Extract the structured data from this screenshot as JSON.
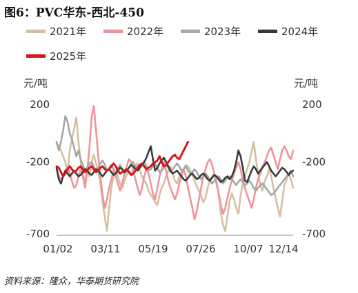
{
  "figure": {
    "title": "图6：PVC华东-西北-450",
    "source": "资料来源：隆众，华泰期货研究院"
  },
  "chart_data": {
    "type": "line",
    "title": "图6：PVC华东-西北-450",
    "xlabel": "",
    "ylabel": "元/吨",
    "ylabel_right": "元/吨",
    "x_ticks": [
      "01/02",
      "03/11",
      "05/19",
      "07/26",
      "10/07",
      "12/14"
    ],
    "y_ticks": [
      200,
      -200,
      -700
    ],
    "ylim": [
      -700,
      350
    ],
    "grid": false,
    "legend_position": "top",
    "series": [
      {
        "name": "2021年",
        "color": "#d4c09e",
        "values": [
          -70,
          -90,
          -120,
          -160,
          -200,
          -280,
          -120,
          -40,
          30,
          110,
          -60,
          -200,
          -280,
          -340,
          -260,
          -300,
          -200,
          -150,
          -210,
          -260,
          -350,
          -480,
          -580,
          -680,
          -520,
          -380,
          -300,
          -260,
          -300,
          -350,
          -380,
          -330,
          -290,
          -260,
          -280,
          -250,
          -230,
          -210,
          -260,
          -300,
          -330,
          -350,
          -400,
          -430,
          -450,
          -480,
          -500,
          -430,
          -380,
          -350,
          -300,
          -260,
          -230,
          -280,
          -330,
          -350,
          -300,
          -270,
          -250,
          -220,
          -230,
          -260,
          -290,
          -330,
          -370,
          -400,
          -440,
          -480,
          -450,
          -380,
          -320,
          -300,
          -280,
          -330,
          -420,
          -560,
          -640,
          -680,
          -580,
          -470,
          -420,
          -460,
          -520,
          -560,
          -430,
          -350,
          -300,
          -250,
          -200,
          -130,
          -60,
          -180,
          -280,
          -360,
          -400,
          -330,
          -300,
          -250,
          -300,
          -380,
          -450,
          -520,
          -580,
          -470,
          -360,
          -320,
          -280,
          -320,
          -380
        ]
      },
      {
        "name": "2022年",
        "color": "#f0939c",
        "values": [
          -250,
          -300,
          -320,
          -300,
          -260,
          -230,
          -280,
          -330,
          -380,
          -360,
          -300,
          -250,
          -300,
          -380,
          -260,
          -100,
          110,
          190,
          20,
          -150,
          -300,
          -430,
          -520,
          -460,
          -380,
          -320,
          -260,
          -300,
          -350,
          -400,
          -350,
          -280,
          -230,
          -180,
          -200,
          -260,
          -320,
          -380,
          -430,
          -380,
          -300,
          -250,
          -280,
          -350,
          -420,
          -460,
          -380,
          -300,
          -250,
          -200,
          -260,
          -330,
          -380,
          -420,
          -460,
          -420,
          -350,
          -300,
          -250,
          -300,
          -380,
          -450,
          -520,
          -600,
          -540,
          -460,
          -380,
          -300,
          -250,
          -200,
          -180,
          -220,
          -280,
          -350,
          -420,
          -500,
          -560,
          -520,
          -450,
          -380,
          -330,
          -280,
          -240,
          -200,
          -250,
          -320,
          -380,
          -430,
          -470,
          -520,
          -460,
          -380,
          -320,
          -280,
          -230,
          -200,
          -160,
          -120,
          -100,
          -150,
          -200,
          -250,
          -180,
          -120,
          -90,
          -120,
          -160,
          -180,
          -120
        ]
      },
      {
        "name": "2023年",
        "color": "#a6a6a6",
        "values": [
          -60,
          -120,
          -60,
          20,
          120,
          80,
          0,
          -40,
          -100,
          -160,
          -120,
          -180,
          -220,
          -260,
          -240,
          -210,
          -200,
          -230,
          -260,
          -240,
          -210,
          -190,
          -220,
          -260,
          -240,
          -220,
          -250,
          -270,
          -240,
          -220,
          -250,
          -280,
          -260,
          -240,
          -220,
          -200,
          -230,
          -260,
          -240,
          -220,
          -200,
          -230,
          -260,
          -250,
          -230,
          -210,
          -240,
          -270,
          -260,
          -240,
          -220,
          -240,
          -270,
          -250,
          -230,
          -210,
          -230,
          -260,
          -250,
          -230,
          -260,
          -280,
          -270,
          -250,
          -270,
          -300,
          -320,
          -300,
          -280,
          -300,
          -330,
          -350,
          -330,
          -310,
          -300,
          -320,
          -350,
          -330,
          -310,
          -300,
          -320,
          -340,
          -360,
          -340,
          -320,
          -340,
          -360,
          -350,
          -330,
          -350,
          -380,
          -400,
          -380,
          -360,
          -350,
          -370,
          -390,
          -410,
          -430,
          -420,
          -400,
          -380,
          -360,
          -340,
          -320,
          -300,
          -280,
          -260,
          -300
        ]
      },
      {
        "name": "2024年",
        "color": "#3a3a3a",
        "values": [
          -240,
          -320,
          -350,
          -300,
          -260,
          -280,
          -300,
          -280,
          -260,
          -280,
          -300,
          -290,
          -270,
          -250,
          -260,
          -280,
          -290,
          -270,
          -250,
          -260,
          -280,
          -300,
          -280,
          -260,
          -250,
          -270,
          -290,
          -280,
          -260,
          -240,
          -250,
          -270,
          -260,
          -240,
          -220,
          -230,
          -250,
          -260,
          -240,
          -220,
          -200,
          -170,
          -130,
          -90,
          -180,
          -260,
          -240,
          -210,
          -190,
          -170,
          -200,
          -230,
          -260,
          -280,
          -270,
          -260,
          -280,
          -300,
          -320,
          -330,
          -310,
          -290,
          -280,
          -300,
          -320,
          -310,
          -290,
          -280,
          -300,
          -320,
          -330,
          -310,
          -290,
          -300,
          -320,
          -340,
          -330,
          -310,
          -300,
          -320,
          -300,
          -260,
          -200,
          -120,
          -160,
          -240,
          -330,
          -340,
          -300,
          -260,
          -230,
          -250,
          -280,
          -260,
          -240,
          -220,
          -200,
          -230,
          -260,
          -280,
          -300,
          -280,
          -260,
          -240,
          -250,
          -270,
          -290,
          -270,
          -260
        ]
      },
      {
        "name": "2025年",
        "color": "#d9161b",
        "values": [
          -230,
          -240,
          -270,
          -300,
          -280,
          -250,
          -230,
          -250,
          -270,
          -260,
          -240,
          -230,
          -250,
          -270,
          -260,
          -240,
          -230,
          -250,
          -270,
          -260,
          -240,
          -230,
          -250,
          -260,
          -250,
          -230,
          -210,
          -230,
          -260,
          -280,
          -270,
          -260,
          -250,
          -270,
          -290,
          -280,
          -260,
          -240,
          -220,
          -210,
          -230,
          -250,
          -240,
          -230,
          -210,
          -200,
          -190,
          -160,
          -200,
          -230,
          -220,
          -200,
          -180,
          -160,
          -150,
          -170,
          -180,
          -150,
          -120,
          -90,
          -60,
          null,
          null,
          null,
          null,
          null,
          null,
          null,
          null,
          null,
          null,
          null,
          null,
          null,
          null,
          null,
          null,
          null,
          null,
          null,
          null,
          null,
          null,
          null,
          null,
          null,
          null,
          null,
          null,
          null,
          null,
          null,
          null,
          null,
          null,
          null,
          null,
          null,
          null,
          null,
          null,
          null,
          null,
          null,
          null,
          null,
          null,
          null,
          null
        ]
      }
    ]
  }
}
